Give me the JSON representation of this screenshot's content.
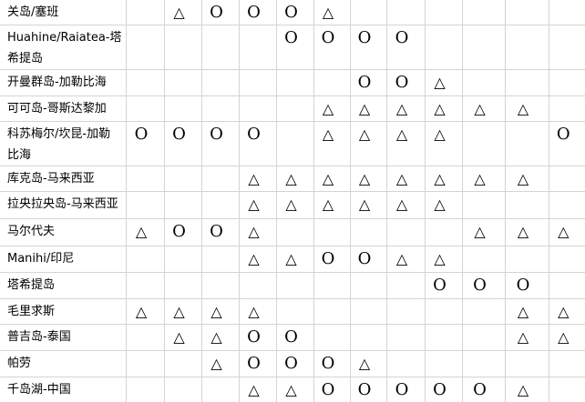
{
  "symbols": {
    "circle": "O",
    "triangle": "△"
  },
  "colors": {
    "gridline": "#d4d4d4",
    "text": "#000000",
    "background": "#ffffff"
  },
  "table": {
    "columns_count": 12,
    "rows": [
      {
        "label": "关岛/塞班",
        "cells": [
          "",
          "triangle",
          "circle",
          "circle",
          "circle",
          "triangle",
          "",
          "",
          "",
          "",
          "",
          ""
        ]
      },
      {
        "label": "Huahine/Raiatea-塔希提岛",
        "cells": [
          "",
          "",
          "",
          "",
          "circle",
          "circle",
          "circle",
          "circle",
          "",
          "",
          "",
          ""
        ]
      },
      {
        "label": "开曼群岛-加勒比海",
        "cells": [
          "",
          "",
          "",
          "",
          "",
          "",
          "circle",
          "circle",
          "triangle",
          "",
          "",
          ""
        ]
      },
      {
        "label": "可可岛-哥斯达黎加",
        "cells": [
          "",
          "",
          "",
          "",
          "",
          "triangle",
          "triangle",
          "triangle",
          "triangle",
          "triangle",
          "triangle",
          ""
        ]
      },
      {
        "label": "科苏梅尔/坎昆-加勒比海",
        "cells": [
          "circle",
          "circle",
          "circle",
          "circle",
          "",
          "triangle",
          "triangle",
          "triangle",
          "triangle",
          "",
          "",
          "circle"
        ]
      },
      {
        "label": "库克岛-马来西亚",
        "cells": [
          "",
          "",
          "",
          "triangle",
          "triangle",
          "triangle",
          "triangle",
          "triangle",
          "triangle",
          "triangle",
          "triangle",
          ""
        ]
      },
      {
        "label": "拉央拉央岛-马来西亚",
        "cells": [
          "",
          "",
          "",
          "triangle",
          "triangle",
          "triangle",
          "triangle",
          "triangle",
          "triangle",
          "",
          "",
          ""
        ]
      },
      {
        "label": "马尔代夫",
        "cells": [
          "triangle",
          "circle",
          "circle",
          "triangle",
          "",
          "",
          "",
          "",
          "",
          "triangle",
          "triangle",
          "triangle"
        ]
      },
      {
        "label": "Manihi/印尼",
        "cells": [
          "",
          "",
          "",
          "triangle",
          "triangle",
          "circle",
          "circle",
          "triangle",
          "triangle",
          "",
          "",
          ""
        ]
      },
      {
        "label": "塔希提岛",
        "cells": [
          "",
          "",
          "",
          "",
          "",
          "",
          "",
          "",
          "circle",
          "circle",
          "circle",
          ""
        ]
      },
      {
        "label": "毛里求斯",
        "cells": [
          "triangle",
          "triangle",
          "triangle",
          "triangle",
          "",
          "",
          "",
          "",
          "",
          "",
          "triangle",
          "triangle"
        ]
      },
      {
        "label": "普吉岛-泰国",
        "cells": [
          "",
          "triangle",
          "triangle",
          "circle",
          "circle",
          "",
          "",
          "",
          "",
          "",
          "triangle",
          "triangle"
        ]
      },
      {
        "label": "帕劳",
        "cells": [
          "",
          "",
          "triangle",
          "circle",
          "circle",
          "circle",
          "triangle",
          "",
          "",
          "",
          "",
          ""
        ]
      },
      {
        "label": "千岛湖-中国",
        "cells": [
          "",
          "",
          "",
          "triangle",
          "triangle",
          "circle",
          "circle",
          "circle",
          "circle",
          "circle",
          "triangle",
          ""
        ]
      }
    ]
  }
}
